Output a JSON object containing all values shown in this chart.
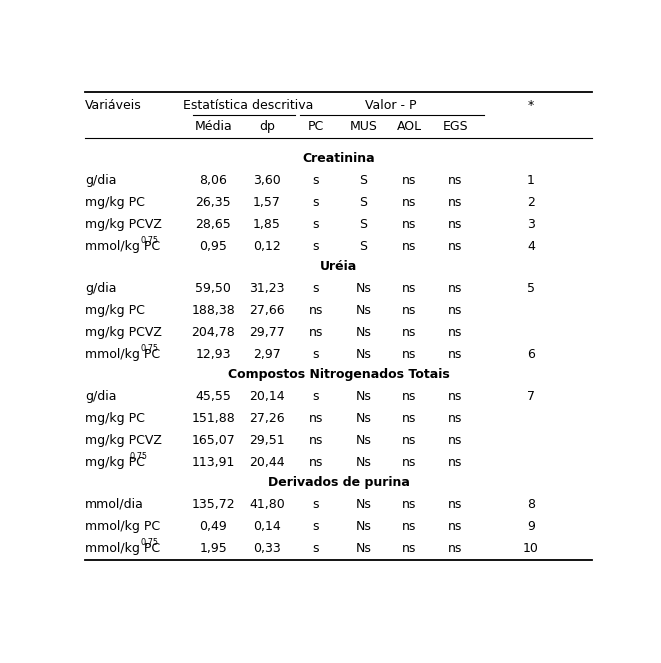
{
  "fig_width": 6.61,
  "fig_height": 6.63,
  "background_color": "#ffffff",
  "font_size": 9.0,
  "sections": [
    {
      "title": "Creatinina",
      "rows": [
        {
          "var": "g/dia",
          "var_sup": "",
          "media": "8,06",
          "dp": "3,60",
          "pc": "s",
          "mus": "S",
          "aol": "ns",
          "egs": "ns",
          "star": "1"
        },
        {
          "var": "mg/kg PC",
          "var_sup": "",
          "media": "26,35",
          "dp": "1,57",
          "pc": "s",
          "mus": "S",
          "aol": "ns",
          "egs": "ns",
          "star": "2"
        },
        {
          "var": "mg/kg PCVZ",
          "var_sup": "",
          "media": "28,65",
          "dp": "1,85",
          "pc": "s",
          "mus": "S",
          "aol": "ns",
          "egs": "ns",
          "star": "3"
        },
        {
          "var": "mmol/kg PC",
          "var_sup": "0,75",
          "media": "0,95",
          "dp": "0,12",
          "pc": "s",
          "mus": "S",
          "aol": "ns",
          "egs": "ns",
          "star": "4"
        }
      ]
    },
    {
      "title": "Uréia",
      "rows": [
        {
          "var": "g/dia",
          "var_sup": "",
          "media": "59,50",
          "dp": "31,23",
          "pc": "s",
          "mus": "Ns",
          "aol": "ns",
          "egs": "ns",
          "star": "5"
        },
        {
          "var": "mg/kg PC",
          "var_sup": "",
          "media": "188,38",
          "dp": "27,66",
          "pc": "ns",
          "mus": "Ns",
          "aol": "ns",
          "egs": "ns",
          "star": ""
        },
        {
          "var": "mg/kg PCVZ",
          "var_sup": "",
          "media": "204,78",
          "dp": "29,77",
          "pc": "ns",
          "mus": "Ns",
          "aol": "ns",
          "egs": "ns",
          "star": ""
        },
        {
          "var": "mmol/kg PC",
          "var_sup": "0,75",
          "media": "12,93",
          "dp": "2,97",
          "pc": "s",
          "mus": "Ns",
          "aol": "ns",
          "egs": "ns",
          "star": "6"
        }
      ]
    },
    {
      "title": "Compostos Nitrogenados Totais",
      "rows": [
        {
          "var": "g/dia",
          "var_sup": "",
          "media": "45,55",
          "dp": "20,14",
          "pc": "s",
          "mus": "Ns",
          "aol": "ns",
          "egs": "ns",
          "star": "7"
        },
        {
          "var": "mg/kg PC",
          "var_sup": "",
          "media": "151,88",
          "dp": "27,26",
          "pc": "ns",
          "mus": "Ns",
          "aol": "ns",
          "egs": "ns",
          "star": ""
        },
        {
          "var": "mg/kg PCVZ",
          "var_sup": "",
          "media": "165,07",
          "dp": "29,51",
          "pc": "ns",
          "mus": "Ns",
          "aol": "ns",
          "egs": "ns",
          "star": ""
        },
        {
          "var": "mg/kg PC",
          "var_sup": "0,75",
          "media": "113,91",
          "dp": "20,44",
          "pc": "ns",
          "mus": "Ns",
          "aol": "ns",
          "egs": "ns",
          "star": ""
        }
      ]
    },
    {
      "title": "Derivados de purina",
      "rows": [
        {
          "var": "mmol/dia",
          "var_sup": "",
          "media": "135,72",
          "dp": "41,80",
          "pc": "s",
          "mus": "Ns",
          "aol": "ns",
          "egs": "ns",
          "star": "8"
        },
        {
          "var": "mmol/kg PC",
          "var_sup": "",
          "media": "0,49",
          "dp": "0,14",
          "pc": "s",
          "mus": "Ns",
          "aol": "ns",
          "egs": "ns",
          "star": "9"
        },
        {
          "var": "mmol/kg PC",
          "var_sup": "0,75",
          "media": "1,95",
          "dp": "0,33",
          "pc": "s",
          "mus": "Ns",
          "aol": "ns",
          "egs": "ns",
          "star": "10"
        }
      ]
    }
  ]
}
